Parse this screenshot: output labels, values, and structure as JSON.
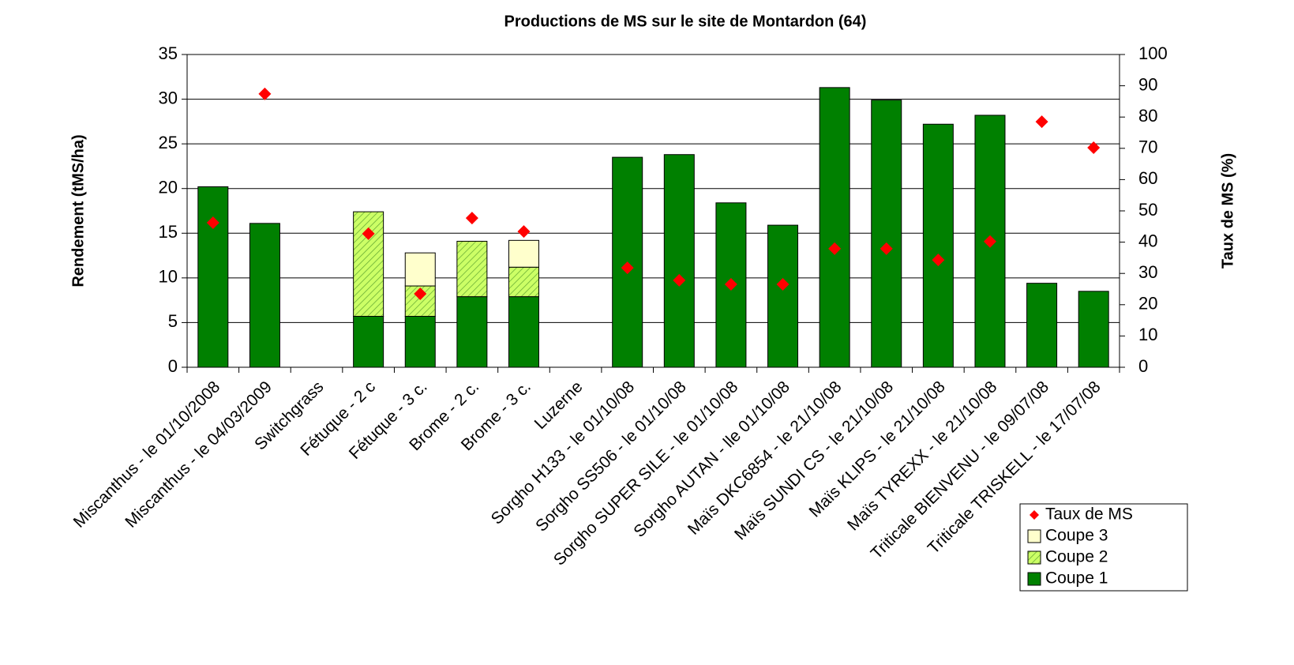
{
  "chart_data": {
    "type": "bar",
    "stacked": true,
    "title": "Productions de MS sur le site de Montardon (64)",
    "y_label": "Rendement (tMS/ha)",
    "y2_label": "Taux de MS (%)",
    "categories": [
      "Miscanthus - le 01/10/2008",
      "Miscanthus - le 04/03/2009",
      "Switchgrass",
      "Fétuque - 2 c",
      "Fétuque - 3 c.",
      "Brome - 2 c.",
      "Brome - 3 c.",
      "Luzerne",
      "Sorgho H133 - le 01/10/08",
      "Sorgho SS506 - le 01/10/08",
      "Sorgho SUPER SILE - le 01/10/08",
      "Sorgho AUTAN - lle 01/10/08",
      "Maïs DKC6854 - le 21/10/08",
      "Maïs SUNDI CS - le 21/10/08",
      "Maïs KLIPS - le 21/10/08",
      "Maïs TYREXX - le 21/10/08",
      "Triticale BIENVENU - le 09/07/08",
      "Triticale TRISKELL - le 17/07/08"
    ],
    "series": [
      {
        "name": "Coupe 1",
        "color": "#008000",
        "values": [
          20.2,
          16.1,
          null,
          5.7,
          5.7,
          7.9,
          7.9,
          null,
          23.5,
          23.8,
          18.4,
          15.9,
          31.3,
          29.9,
          27.2,
          28.2,
          9.4,
          8.5
        ]
      },
      {
        "name": "Coupe 2",
        "color": "#ccff66",
        "hatch": true,
        "values": [
          null,
          null,
          null,
          11.7,
          3.4,
          6.2,
          3.3,
          null,
          null,
          null,
          null,
          null,
          null,
          null,
          null,
          null,
          null,
          null
        ]
      },
      {
        "name": "Coupe 3",
        "color": "#ffffcc",
        "values": [
          null,
          null,
          null,
          null,
          3.7,
          null,
          3.0,
          null,
          null,
          null,
          null,
          null,
          null,
          null,
          null,
          null,
          null,
          null
        ]
      },
      {
        "name": "Taux de MS",
        "color": "#ff0000",
        "type": "scatter",
        "marker": "diamond",
        "axis": "y2",
        "values": [
          46.2,
          87.4,
          null,
          42.7,
          23.5,
          47.7,
          43.4,
          null,
          31.8,
          27.8,
          26.5,
          26.5,
          37.9,
          37.9,
          34.3,
          40.2,
          78.5,
          70.2
        ]
      }
    ],
    "ylim": [
      0,
      35
    ],
    "yticks": [
      0,
      5,
      10,
      15,
      20,
      25,
      30,
      35
    ],
    "y2lim": [
      0,
      100
    ],
    "y2ticks": [
      0,
      10,
      20,
      30,
      40,
      50,
      60,
      70,
      80,
      90,
      100
    ],
    "grid": true,
    "legend": "bottom-right"
  }
}
